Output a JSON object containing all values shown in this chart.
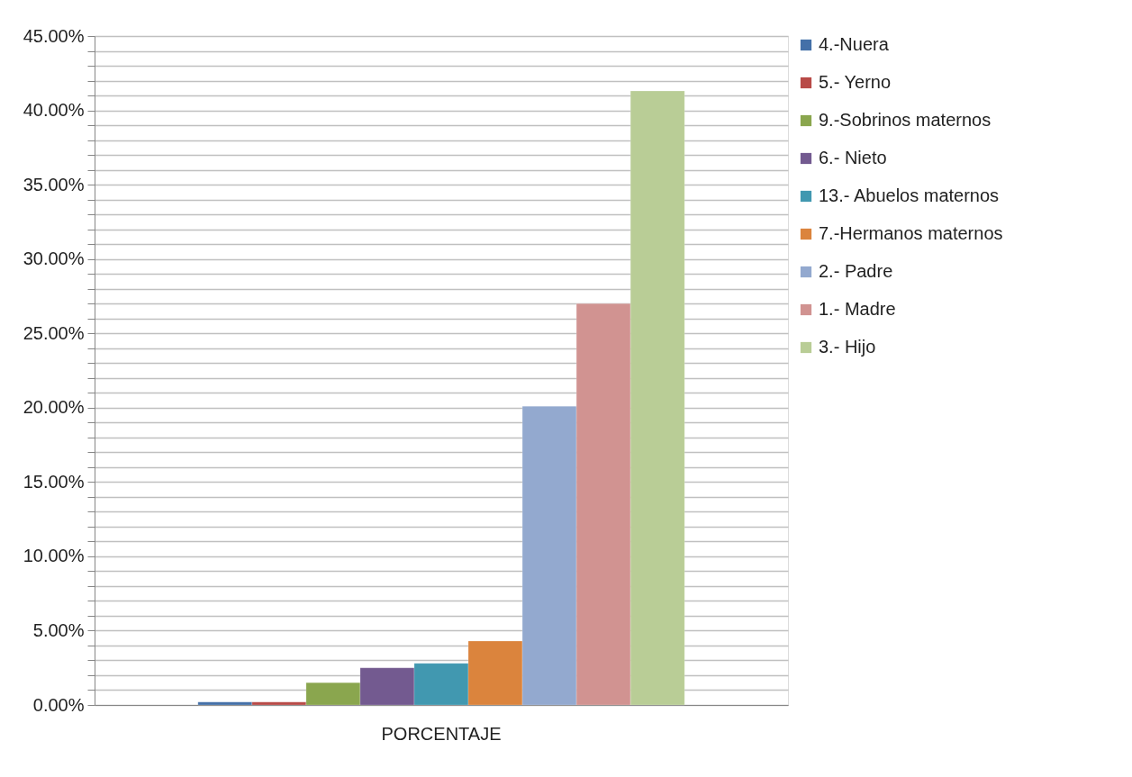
{
  "chart_data": {
    "type": "bar",
    "xlabel": null,
    "categories": [
      "PORCENTAJE"
    ],
    "series": [
      {
        "name": "4.-Nuera",
        "color": "#4470a8",
        "values": [
          0.2
        ]
      },
      {
        "name": "5.- Yerno",
        "color": "#b84a47",
        "values": [
          0.2
        ]
      },
      {
        "name": "9.-Sobrinos maternos",
        "color": "#8aa64e",
        "values": [
          1.5
        ]
      },
      {
        "name": "6.- Nieto",
        "color": "#735a90",
        "values": [
          2.5
        ]
      },
      {
        "name": "13.- Abuelos maternos",
        "color": "#4198b0",
        "values": [
          2.8
        ]
      },
      {
        "name": "7.-Hermanos  maternos",
        "color": "#db843d",
        "values": [
          4.3
        ]
      },
      {
        "name": "2.- Padre",
        "color": "#93a9cf",
        "values": [
          20.1
        ]
      },
      {
        "name": "1.- Madre",
        "color": "#d19391",
        "values": [
          27.0
        ]
      },
      {
        "name": "3.- Hijo",
        "color": "#b9cd96",
        "values": [
          41.3
        ]
      }
    ],
    "ylim": [
      0,
      45
    ],
    "yticks": [
      {
        "value": 0,
        "label": "0.00%"
      },
      {
        "value": 1,
        "label": null
      },
      {
        "value": 2,
        "label": null
      },
      {
        "value": 3,
        "label": null
      },
      {
        "value": 4,
        "label": null
      },
      {
        "value": 5,
        "label": "5.00%"
      },
      {
        "value": 6,
        "label": null
      },
      {
        "value": 7,
        "label": null
      },
      {
        "value": 8,
        "label": null
      },
      {
        "value": 9,
        "label": null
      },
      {
        "value": 10,
        "label": "10.00%"
      },
      {
        "value": 11,
        "label": null
      },
      {
        "value": 12,
        "label": null
      },
      {
        "value": 13,
        "label": null
      },
      {
        "value": 14,
        "label": null
      },
      {
        "value": 15,
        "label": "15.00%"
      },
      {
        "value": 16,
        "label": null
      },
      {
        "value": 17,
        "label": null
      },
      {
        "value": 18,
        "label": null
      },
      {
        "value": 19,
        "label": null
      },
      {
        "value": 20,
        "label": "20.00%"
      },
      {
        "value": 21,
        "label": null
      },
      {
        "value": 22,
        "label": null
      },
      {
        "value": 23,
        "label": null
      },
      {
        "value": 24,
        "label": null
      },
      {
        "value": 25,
        "label": "25.00%"
      },
      {
        "value": 26,
        "label": null
      },
      {
        "value": 27,
        "label": null
      },
      {
        "value": 28,
        "label": null
      },
      {
        "value": 29,
        "label": null
      },
      {
        "value": 30,
        "label": "30.00%"
      },
      {
        "value": 31,
        "label": null
      },
      {
        "value": 32,
        "label": null
      },
      {
        "value": 33,
        "label": null
      },
      {
        "value": 34,
        "label": null
      },
      {
        "value": 35,
        "label": "35.00%"
      },
      {
        "value": 36,
        "label": null
      },
      {
        "value": 37,
        "label": null
      },
      {
        "value": 38,
        "label": null
      },
      {
        "value": 39,
        "label": null
      },
      {
        "value": 40,
        "label": "40.00%"
      },
      {
        "value": 41,
        "label": null
      },
      {
        "value": 42,
        "label": null
      },
      {
        "value": 43,
        "label": null
      },
      {
        "value": 44,
        "label": null
      },
      {
        "value": 45,
        "label": "45.00%"
      }
    ],
    "grid": "y",
    "legend": "right"
  }
}
